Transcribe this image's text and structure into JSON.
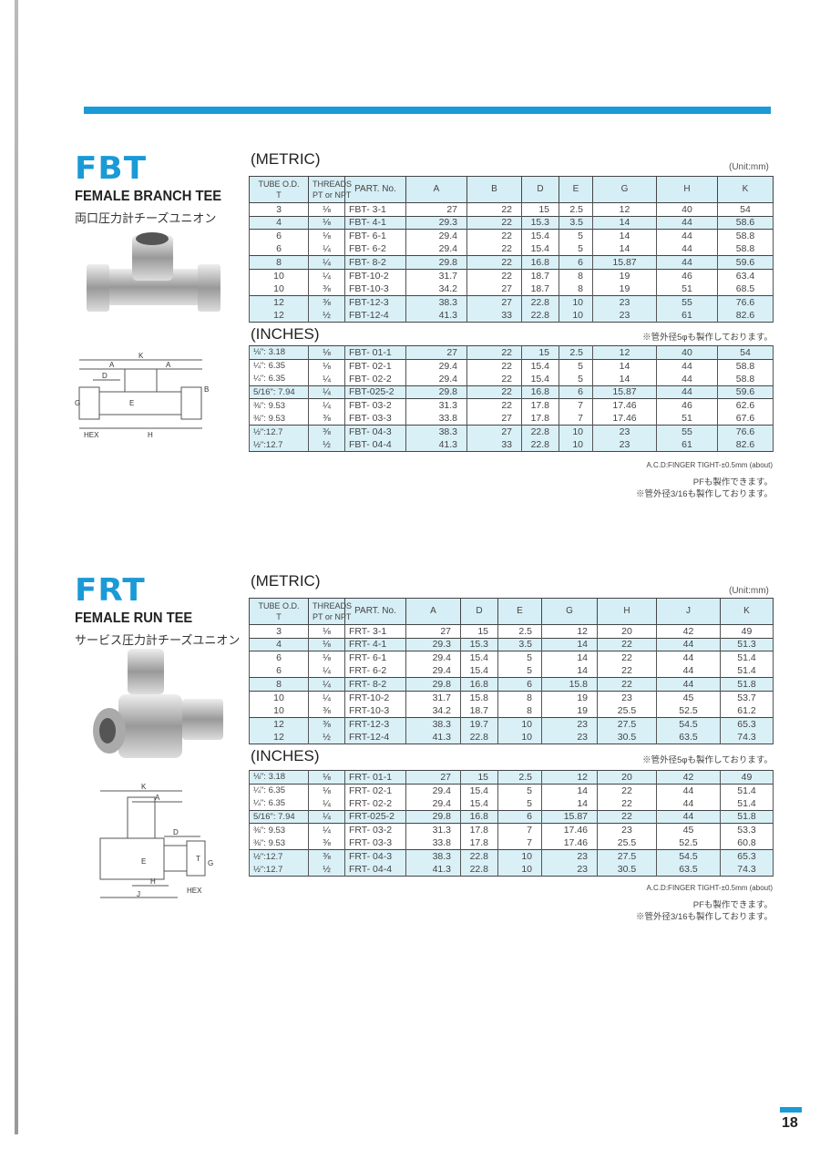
{
  "page_number": "18",
  "colors": {
    "accent": "#1a9ad6",
    "row_shade": "#d9f0f7"
  },
  "fbt": {
    "code": "FBT",
    "name_en": "FEMALE BRANCH  TEE",
    "name_jp": "両口圧力計チーズユニオン",
    "metric_label": "(METRIC)",
    "inches_label": "(INCHES)",
    "unit": "(Unit:mm)",
    "note_5phi": "※管外径5φも製作しております。",
    "note_tight": "A.C.D:FINGER TIGHT-±0.5mm (about)",
    "note_pf": "PFも製作できます。",
    "note_316": "※管外径3/16も製作しております。",
    "headers": [
      "TUBE O.D.\nT",
      "THREADS\nPT or NPT",
      "PART. No.",
      "A",
      "B",
      "D",
      "E",
      "G",
      "H",
      "K"
    ],
    "metric": [
      {
        "shaded": false,
        "rows": [
          [
            "3",
            "⅛",
            "FBT- 3-1",
            "27",
            "22",
            "15",
            "2.5",
            "12",
            "40",
            "54"
          ]
        ]
      },
      {
        "shaded": true,
        "rows": [
          [
            "4",
            "⅛",
            "FBT- 4-1",
            "29.3",
            "22",
            "15.3",
            "3.5",
            "14",
            "44",
            "58.6"
          ]
        ]
      },
      {
        "shaded": false,
        "rows": [
          [
            "6",
            "⅛",
            "FBT- 6-1",
            "29.4",
            "22",
            "15.4",
            "5",
            "14",
            "44",
            "58.8"
          ],
          [
            "6",
            "¼",
            "FBT- 6-2",
            "29.4",
            "22",
            "15.4",
            "5",
            "14",
            "44",
            "58.8"
          ]
        ]
      },
      {
        "shaded": true,
        "rows": [
          [
            "8",
            "¼",
            "FBT- 8-2",
            "29.8",
            "22",
            "16.8",
            "6",
            "15.87",
            "44",
            "59.6"
          ]
        ]
      },
      {
        "shaded": false,
        "rows": [
          [
            "10",
            "¼",
            "FBT-10-2",
            "31.7",
            "22",
            "18.7",
            "8",
            "19",
            "46",
            "63.4"
          ],
          [
            "10",
            "⅜",
            "FBT-10-3",
            "34.2",
            "27",
            "18.7",
            "8",
            "19",
            "51",
            "68.5"
          ]
        ]
      },
      {
        "shaded": true,
        "rows": [
          [
            "12",
            "⅜",
            "FBT-12-3",
            "38.3",
            "27",
            "22.8",
            "10",
            "23",
            "55",
            "76.6"
          ],
          [
            "12",
            "½",
            "FBT-12-4",
            "41.3",
            "33",
            "22.8",
            "10",
            "23",
            "61",
            "82.6"
          ]
        ]
      }
    ],
    "inches": [
      {
        "shaded": true,
        "rows": [
          [
            "⅛\": 3.18",
            "⅛",
            "FBT- 01-1",
            "27",
            "22",
            "15",
            "2.5",
            "12",
            "40",
            "54"
          ]
        ]
      },
      {
        "shaded": false,
        "rows": [
          [
            "¼\": 6.35",
            "⅛",
            "FBT- 02-1",
            "29.4",
            "22",
            "15.4",
            "5",
            "14",
            "44",
            "58.8"
          ],
          [
            "¼\": 6.35",
            "¼",
            "FBT- 02-2",
            "29.4",
            "22",
            "15.4",
            "5",
            "14",
            "44",
            "58.8"
          ]
        ]
      },
      {
        "shaded": true,
        "rows": [
          [
            "5/16\": 7.94",
            "¼",
            "FBT-025-2",
            "29.8",
            "22",
            "16.8",
            "6",
            "15.87",
            "44",
            "59.6"
          ]
        ]
      },
      {
        "shaded": false,
        "rows": [
          [
            "⅜\": 9.53",
            "¼",
            "FBT- 03-2",
            "31.3",
            "22",
            "17.8",
            "7",
            "17.46",
            "46",
            "62.6"
          ],
          [
            "⅜\": 9.53",
            "⅜",
            "FBT- 03-3",
            "33.8",
            "27",
            "17.8",
            "7",
            "17.46",
            "51",
            "67.6"
          ]
        ]
      },
      {
        "shaded": true,
        "rows": [
          [
            "½\":12.7",
            "⅜",
            "FBT- 04-3",
            "38.3",
            "27",
            "22.8",
            "10",
            "23",
            "55",
            "76.6"
          ],
          [
            "½\":12.7",
            "½",
            "FBT- 04-4",
            "41.3",
            "33",
            "22.8",
            "10",
            "23",
            "61",
            "82.6"
          ]
        ]
      }
    ]
  },
  "frt": {
    "code": "FRT",
    "name_en": "FEMALE RUN  TEE",
    "name_jp": "サービス圧力計チーズユニオン",
    "metric_label": "(METRIC)",
    "inches_label": "(INCHES)",
    "unit": "(Unit:mm)",
    "note_5phi": "※管外径5φも製作しております。",
    "note_tight": "A.C.D:FINGER TIGHT-±0.5mm (about)",
    "note_pf": "PFも製作できます。",
    "note_316": "※管外径3/16も製作しております。",
    "headers": [
      "TUBE O.D.\nT",
      "THREADS\nPT or NPT",
      "PART. No.",
      "A",
      "D",
      "E",
      "G",
      "H",
      "J",
      "K"
    ],
    "metric": [
      {
        "shaded": false,
        "rows": [
          [
            "3",
            "⅛",
            "FRT- 3-1",
            "27",
            "15",
            "2.5",
            "12",
            "20",
            "42",
            "49"
          ]
        ]
      },
      {
        "shaded": true,
        "rows": [
          [
            "4",
            "⅛",
            "FRT- 4-1",
            "29.3",
            "15.3",
            "3.5",
            "14",
            "22",
            "44",
            "51.3"
          ]
        ]
      },
      {
        "shaded": false,
        "rows": [
          [
            "6",
            "⅛",
            "FRT- 6-1",
            "29.4",
            "15.4",
            "5",
            "14",
            "22",
            "44",
            "51.4"
          ],
          [
            "6",
            "¼",
            "FRT- 6-2",
            "29.4",
            "15.4",
            "5",
            "14",
            "22",
            "44",
            "51.4"
          ]
        ]
      },
      {
        "shaded": true,
        "rows": [
          [
            "8",
            "¼",
            "FRT- 8-2",
            "29.8",
            "16.8",
            "6",
            "15.8",
            "22",
            "44",
            "51.8"
          ]
        ]
      },
      {
        "shaded": false,
        "rows": [
          [
            "10",
            "¼",
            "FRT-10-2",
            "31.7",
            "15.8",
            "8",
            "19",
            "23",
            "45",
            "53.7"
          ],
          [
            "10",
            "⅜",
            "FRT-10-3",
            "34.2",
            "18.7",
            "8",
            "19",
            "25.5",
            "52.5",
            "61.2"
          ]
        ]
      },
      {
        "shaded": true,
        "rows": [
          [
            "12",
            "⅜",
            "FRT-12-3",
            "38.3",
            "19.7",
            "10",
            "23",
            "27.5",
            "54.5",
            "65.3"
          ],
          [
            "12",
            "½",
            "FRT-12-4",
            "41.3",
            "22.8",
            "10",
            "23",
            "30.5",
            "63.5",
            "74.3"
          ]
        ]
      }
    ],
    "inches": [
      {
        "shaded": true,
        "rows": [
          [
            "⅛\": 3.18",
            "⅛",
            "FRT- 01-1",
            "27",
            "15",
            "2.5",
            "12",
            "20",
            "42",
            "49"
          ]
        ]
      },
      {
        "shaded": false,
        "rows": [
          [
            "¼\": 6.35",
            "⅛",
            "FRT- 02-1",
            "29.4",
            "15.4",
            "5",
            "14",
            "22",
            "44",
            "51.4"
          ],
          [
            "¼\": 6.35",
            "¼",
            "FRT- 02-2",
            "29.4",
            "15.4",
            "5",
            "14",
            "22",
            "44",
            "51.4"
          ]
        ]
      },
      {
        "shaded": true,
        "rows": [
          [
            "5/16\": 7.94",
            "¼",
            "FRT-025-2",
            "29.8",
            "16.8",
            "6",
            "15.87",
            "22",
            "44",
            "51.8"
          ]
        ]
      },
      {
        "shaded": false,
        "rows": [
          [
            "⅜\": 9.53",
            "¼",
            "FRT- 03-2",
            "31.3",
            "17.8",
            "7",
            "17.46",
            "23",
            "45",
            "53.3"
          ],
          [
            "⅜\": 9.53",
            "⅜",
            "FRT- 03-3",
            "33.8",
            "17.8",
            "7",
            "17.46",
            "25.5",
            "52.5",
            "60.8"
          ]
        ]
      },
      {
        "shaded": true,
        "rows": [
          [
            "½\":12.7",
            "⅜",
            "FRT- 04-3",
            "38.3",
            "22.8",
            "10",
            "23",
            "27.5",
            "54.5",
            "65.3"
          ],
          [
            "½\":12.7",
            "½",
            "FRT- 04-4",
            "41.3",
            "22.8",
            "10",
            "23",
            "30.5",
            "63.5",
            "74.3"
          ]
        ]
      }
    ]
  },
  "drawing_labels": {
    "fbt": [
      "K",
      "A",
      "A",
      "D",
      "B",
      "G",
      "E",
      "HEX",
      "H"
    ],
    "frt": [
      "K",
      "A",
      "D",
      "T",
      "G",
      "E",
      "H",
      "J",
      "HEX"
    ]
  }
}
